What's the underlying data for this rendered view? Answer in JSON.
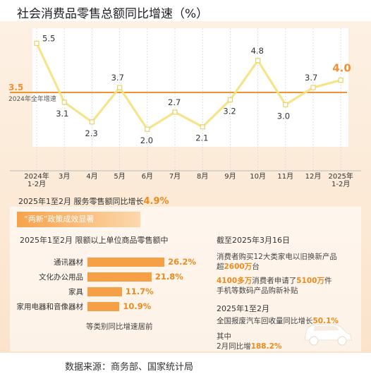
{
  "title": "社会消费品零售总额同比增速（%）",
  "chart_data": {
    "type": "line",
    "title": "社会消费品零售总额同比增速（%）",
    "categories": [
      "2024年\n1-2月",
      "3月",
      "4月",
      "5月",
      "6月",
      "7月",
      "8月",
      "9月",
      "10月",
      "11月",
      "12月",
      "2025年\n1-2月"
    ],
    "values": [
      5.5,
      3.1,
      2.3,
      3.7,
      2.0,
      2.7,
      2.1,
      3.2,
      4.8,
      3.0,
      3.7,
      4.0
    ],
    "value_labels": [
      "5.5",
      "3.1",
      "2.3",
      "3.7",
      "2.0",
      "2.7",
      "2.1",
      "3.2",
      "4.8",
      "3.0",
      "3.7",
      "4.0"
    ],
    "reference_line": {
      "value": 3.5,
      "value_label": "3.5",
      "label": "2024年全年增速"
    },
    "line_color": "#f6e48a",
    "ref_color": "#f29132",
    "ylim": [
      1.0,
      6.0
    ]
  },
  "stat_line": {
    "prefix": "2025年1至2月  服务零售额同比增长",
    "value": "4.9%"
  },
  "banner": "“两新”政策成效显著",
  "bars": {
    "subtitle": "2025年1至2月  限额以上单位商品零售额中",
    "type": "bar",
    "categories": [
      "通讯器材",
      "文化办公用品",
      "家具",
      "家用电器和音像器材"
    ],
    "values": [
      26.2,
      21.8,
      11.7,
      10.9
    ],
    "value_labels": [
      "26.2%",
      "21.8%",
      "11.7%",
      "10.9%"
    ],
    "note": "等类别同比增速居前"
  },
  "right_panel": {
    "head1": "截至2025年3月16日",
    "line1a": "消费者购买12大类家电以旧换新产品",
    "line1b_prefix": "超",
    "line1b_value": "2600万",
    "line1b_suffix": "台",
    "line2a_value1": "4100多万",
    "line2a_mid": "消费者申请了",
    "line2a_value2": "5100万",
    "line2a_suffix": "件",
    "line2b": "手机等数码产品购新补贴",
    "head2": "2025年1至2月",
    "line3_prefix": "全国报废汽车回收量同比增长",
    "line3_value": "50.1%",
    "line4a": "其中",
    "line4b_prefix": "2月同比增",
    "line4b_value": "188.2%"
  },
  "source": "数据来源：商务部、国家统计局"
}
